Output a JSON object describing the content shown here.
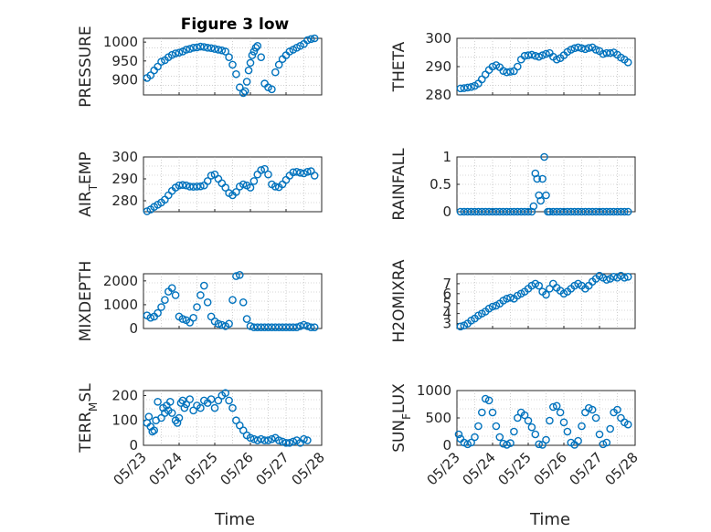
{
  "figure": {
    "title": "Figure 3 low",
    "xlabel": "Time"
  },
  "chart_data": [
    {
      "type": "scatter",
      "ylabel": "PRESSURE",
      "ylim": [
        860,
        1010
      ],
      "yticks": [
        900,
        950,
        1000
      ],
      "xticks": [
        "05/23",
        "05/24",
        "05/25",
        "05/26",
        "05/27",
        "05/28"
      ],
      "xlim": [
        0,
        5
      ],
      "grid": true,
      "color": "#0072BD",
      "x": [
        0.1,
        0.2,
        0.3,
        0.4,
        0.5,
        0.6,
        0.7,
        0.8,
        0.9,
        1.0,
        1.1,
        1.2,
        1.3,
        1.4,
        1.5,
        1.6,
        1.7,
        1.8,
        1.9,
        2.0,
        2.1,
        2.2,
        2.3,
        2.4,
        2.5,
        2.6,
        2.7,
        2.8,
        2.85,
        2.9,
        2.95,
        3.0,
        3.05,
        3.1,
        3.15,
        3.2,
        3.3,
        3.4,
        3.5,
        3.6,
        3.7,
        3.8,
        3.9,
        4.0,
        4.1,
        4.2,
        4.3,
        4.4,
        4.5,
        4.6,
        4.7,
        4.8
      ],
      "values": [
        905,
        912,
        925,
        935,
        948,
        952,
        960,
        966,
        970,
        972,
        975,
        980,
        982,
        985,
        986,
        988,
        987,
        985,
        984,
        982,
        980,
        978,
        975,
        960,
        940,
        915,
        880,
        865,
        870,
        895,
        925,
        945,
        965,
        975,
        985,
        990,
        960,
        890,
        880,
        875,
        920,
        940,
        955,
        965,
        975,
        980,
        985,
        990,
        995,
        1005,
        1008,
        1010
      ]
    },
    {
      "type": "scatter",
      "ylabel": "THETA",
      "ylim": [
        280,
        300
      ],
      "yticks": [
        280,
        290,
        300
      ],
      "xticks": [
        "05/23",
        "05/24",
        "05/25",
        "05/26",
        "05/27",
        "05/28"
      ],
      "xlim": [
        0,
        5
      ],
      "grid": true,
      "color": "#0072BD",
      "x": [
        0.1,
        0.2,
        0.3,
        0.4,
        0.5,
        0.6,
        0.7,
        0.8,
        0.9,
        1.0,
        1.1,
        1.2,
        1.3,
        1.4,
        1.5,
        1.6,
        1.7,
        1.8,
        1.9,
        2.0,
        2.1,
        2.2,
        2.3,
        2.4,
        2.5,
        2.6,
        2.7,
        2.8,
        2.9,
        3.0,
        3.1,
        3.2,
        3.3,
        3.4,
        3.5,
        3.6,
        3.7,
        3.8,
        3.9,
        4.0,
        4.1,
        4.2,
        4.3,
        4.4,
        4.5,
        4.6,
        4.7,
        4.8
      ],
      "values": [
        282.3,
        282.4,
        282.6,
        282.8,
        283.2,
        284.0,
        285.5,
        287.2,
        288.8,
        290.0,
        290.5,
        289.8,
        288.5,
        288.0,
        288.2,
        288.4,
        290.0,
        292.5,
        293.8,
        294.0,
        294.2,
        293.8,
        293.5,
        294.0,
        294.5,
        294.8,
        293.5,
        292.5,
        293.0,
        294.0,
        295.2,
        296.0,
        296.5,
        296.8,
        296.5,
        296.2,
        296.6,
        296.8,
        296.0,
        295.5,
        294.5,
        294.8,
        294.8,
        295.0,
        294.2,
        293.2,
        292.5,
        291.5
      ]
    },
    {
      "type": "scatter",
      "ylabel": "AIR_TEMP",
      "ylim": [
        275,
        300
      ],
      "yticks": [
        280,
        290,
        300
      ],
      "xticks": [
        "05/23",
        "05/24",
        "05/25",
        "05/26",
        "05/27",
        "05/28"
      ],
      "xlim": [
        0,
        5
      ],
      "grid": true,
      "color": "#0072BD",
      "x": [
        0.1,
        0.2,
        0.3,
        0.4,
        0.5,
        0.6,
        0.7,
        0.8,
        0.9,
        1.0,
        1.1,
        1.2,
        1.3,
        1.4,
        1.5,
        1.6,
        1.7,
        1.8,
        1.9,
        2.0,
        2.1,
        2.2,
        2.3,
        2.4,
        2.5,
        2.6,
        2.7,
        2.8,
        2.9,
        3.0,
        3.1,
        3.2,
        3.3,
        3.4,
        3.5,
        3.6,
        3.7,
        3.8,
        3.9,
        4.0,
        4.1,
        4.2,
        4.3,
        4.4,
        4.5,
        4.6,
        4.7,
        4.8
      ],
      "values": [
        275.2,
        276.0,
        277.2,
        278.2,
        279.2,
        280.5,
        282.5,
        284.5,
        286.0,
        287.0,
        287.2,
        287.0,
        286.5,
        286.4,
        286.5,
        286.6,
        287.0,
        289.0,
        291.5,
        292.0,
        290.0,
        288.0,
        286.0,
        283.5,
        282.5,
        284.0,
        286.5,
        287.5,
        287.0,
        286.0,
        289.0,
        292.0,
        294.0,
        294.5,
        292.0,
        287.5,
        286.5,
        286.2,
        287.5,
        289.5,
        291.5,
        293.0,
        293.2,
        292.8,
        292.5,
        293.2,
        293.5,
        291.5
      ]
    },
    {
      "type": "scatter",
      "ylabel": "RAINFALL",
      "ylim": [
        0,
        1
      ],
      "yticks": [
        0,
        0.5,
        1
      ],
      "xticks": [
        "05/23",
        "05/24",
        "05/25",
        "05/26",
        "05/27",
        "05/28"
      ],
      "xlim": [
        0,
        5
      ],
      "grid": true,
      "color": "#0072BD",
      "x": [
        0.1,
        0.2,
        0.3,
        0.4,
        0.5,
        0.6,
        0.7,
        0.8,
        0.9,
        1.0,
        1.1,
        1.2,
        1.3,
        1.4,
        1.5,
        1.6,
        1.7,
        1.8,
        1.9,
        2.0,
        2.1,
        2.15,
        2.2,
        2.25,
        2.3,
        2.35,
        2.4,
        2.45,
        2.5,
        2.55,
        2.6,
        2.7,
        2.8,
        2.9,
        3.0,
        3.1,
        3.2,
        3.3,
        3.4,
        3.5,
        3.6,
        3.7,
        3.8,
        3.9,
        4.0,
        4.1,
        4.2,
        4.3,
        4.4,
        4.5,
        4.6,
        4.7,
        4.8
      ],
      "values": [
        0,
        0,
        0,
        0,
        0,
        0,
        0,
        0,
        0,
        0,
        0,
        0,
        0,
        0,
        0,
        0,
        0,
        0,
        0,
        0,
        0,
        0.1,
        0.7,
        0.6,
        0.3,
        0.2,
        0.6,
        1.0,
        0.3,
        0,
        0,
        0,
        0,
        0,
        0,
        0,
        0,
        0,
        0,
        0,
        0,
        0,
        0,
        0,
        0,
        0,
        0,
        0,
        0,
        0,
        0,
        0,
        0
      ]
    },
    {
      "type": "scatter",
      "ylabel": "MIXDEPTH",
      "ylim": [
        0,
        2300
      ],
      "yticks": [
        0,
        1000,
        2000
      ],
      "xticks": [
        "05/23",
        "05/24",
        "05/25",
        "05/26",
        "05/27",
        "05/28"
      ],
      "xlim": [
        0,
        5
      ],
      "grid": true,
      "color": "#0072BD",
      "x": [
        0.1,
        0.2,
        0.3,
        0.4,
        0.5,
        0.6,
        0.7,
        0.8,
        0.9,
        1.0,
        1.1,
        1.2,
        1.3,
        1.4,
        1.5,
        1.6,
        1.7,
        1.8,
        1.9,
        2.0,
        2.1,
        2.2,
        2.3,
        2.4,
        2.5,
        2.6,
        2.7,
        2.8,
        2.9,
        3.0,
        3.1,
        3.2,
        3.3,
        3.4,
        3.5,
        3.6,
        3.7,
        3.8,
        3.9,
        4.0,
        4.1,
        4.2,
        4.3,
        4.4,
        4.5,
        4.6,
        4.7,
        4.8
      ],
      "values": [
        550,
        450,
        500,
        650,
        900,
        1200,
        1550,
        1700,
        1400,
        500,
        400,
        350,
        250,
        450,
        900,
        1400,
        1800,
        1100,
        500,
        300,
        200,
        150,
        100,
        200,
        1200,
        2200,
        2250,
        1100,
        400,
        100,
        50,
        50,
        50,
        50,
        50,
        50,
        50,
        50,
        50,
        50,
        50,
        50,
        50,
        100,
        150,
        100,
        50,
        50
      ]
    },
    {
      "type": "scatter",
      "ylabel": "H2OMIXRA",
      "ylim": [
        2.5,
        8
      ],
      "yticks": [
        3,
        4,
        5,
        6,
        7
      ],
      "xticks": [
        "05/23",
        "05/24",
        "05/25",
        "05/26",
        "05/27",
        "05/28"
      ],
      "xlim": [
        0,
        5
      ],
      "grid": true,
      "color": "#0072BD",
      "x": [
        0.1,
        0.2,
        0.3,
        0.4,
        0.5,
        0.6,
        0.7,
        0.8,
        0.9,
        1.0,
        1.1,
        1.2,
        1.3,
        1.4,
        1.5,
        1.6,
        1.7,
        1.8,
        1.9,
        2.0,
        2.1,
        2.2,
        2.3,
        2.4,
        2.5,
        2.6,
        2.7,
        2.8,
        2.9,
        3.0,
        3.1,
        3.2,
        3.3,
        3.4,
        3.5,
        3.6,
        3.7,
        3.8,
        3.9,
        4.0,
        4.1,
        4.2,
        4.3,
        4.4,
        4.5,
        4.6,
        4.7,
        4.8
      ],
      "values": [
        2.7,
        2.8,
        3.0,
        3.3,
        3.5,
        3.8,
        4.0,
        4.2,
        4.5,
        4.7,
        4.8,
        5.0,
        5.3,
        5.5,
        5.6,
        5.5,
        5.8,
        6.0,
        6.2,
        6.5,
        6.8,
        7.0,
        6.8,
        6.2,
        5.9,
        6.5,
        7.0,
        6.6,
        6.3,
        6.0,
        6.2,
        6.5,
        6.8,
        7.0,
        6.8,
        6.5,
        6.8,
        7.2,
        7.5,
        7.8,
        7.6,
        7.4,
        7.5,
        7.7,
        7.6,
        7.8,
        7.6,
        7.7
      ]
    },
    {
      "type": "scatter",
      "ylabel": "TERR_MSL",
      "ylim": [
        0,
        220
      ],
      "yticks": [
        0,
        100,
        200
      ],
      "xticks": [
        "05/23",
        "05/24",
        "05/25",
        "05/26",
        "05/27",
        "05/28"
      ],
      "xlim": [
        0,
        5
      ],
      "grid": true,
      "color": "#0072BD",
      "x": [
        0.1,
        0.15,
        0.2,
        0.25,
        0.3,
        0.35,
        0.4,
        0.5,
        0.55,
        0.6,
        0.65,
        0.7,
        0.75,
        0.8,
        0.9,
        0.95,
        1.0,
        1.05,
        1.1,
        1.15,
        1.2,
        1.3,
        1.4,
        1.5,
        1.6,
        1.7,
        1.8,
        1.9,
        2.0,
        2.1,
        2.2,
        2.3,
        2.4,
        2.5,
        2.6,
        2.7,
        2.8,
        2.9,
        3.0,
        3.1,
        3.2,
        3.3,
        3.4,
        3.5,
        3.6,
        3.7,
        3.8,
        3.9,
        4.0,
        4.1,
        4.2,
        4.3,
        4.4,
        4.5,
        4.6
      ],
      "values": [
        90,
        115,
        75,
        55,
        60,
        100,
        175,
        110,
        150,
        130,
        160,
        140,
        175,
        130,
        100,
        90,
        110,
        170,
        180,
        150,
        165,
        185,
        140,
        160,
        150,
        180,
        170,
        185,
        150,
        180,
        200,
        210,
        180,
        150,
        100,
        80,
        60,
        40,
        30,
        25,
        20,
        25,
        20,
        20,
        25,
        30,
        20,
        15,
        10,
        10,
        15,
        20,
        10,
        25,
        20
      ]
    },
    {
      "type": "scatter",
      "ylabel": "SUN_FLUX",
      "ylim": [
        0,
        1000
      ],
      "yticks": [
        0,
        500,
        1000
      ],
      "xticks": [
        "05/23",
        "05/24",
        "05/25",
        "05/26",
        "05/27",
        "05/28"
      ],
      "xlim": [
        0,
        5
      ],
      "grid": true,
      "color": "#0072BD",
      "x": [
        0.05,
        0.1,
        0.2,
        0.3,
        0.4,
        0.5,
        0.6,
        0.7,
        0.8,
        0.9,
        1.0,
        1.1,
        1.2,
        1.3,
        1.4,
        1.5,
        1.6,
        1.7,
        1.8,
        1.9,
        2.0,
        2.1,
        2.2,
        2.3,
        2.4,
        2.5,
        2.6,
        2.7,
        2.8,
        2.9,
        3.0,
        3.1,
        3.2,
        3.3,
        3.4,
        3.5,
        3.6,
        3.7,
        3.8,
        3.9,
        4.0,
        4.1,
        4.2,
        4.3,
        4.4,
        4.5,
        4.6,
        4.7,
        4.8
      ],
      "values": [
        200,
        120,
        50,
        20,
        50,
        150,
        350,
        600,
        850,
        820,
        600,
        350,
        150,
        30,
        10,
        40,
        250,
        500,
        600,
        550,
        450,
        330,
        200,
        20,
        10,
        100,
        450,
        700,
        720,
        600,
        420,
        250,
        50,
        10,
        80,
        350,
        600,
        680,
        650,
        500,
        200,
        20,
        50,
        300,
        600,
        650,
        500,
        420,
        380
      ]
    }
  ]
}
